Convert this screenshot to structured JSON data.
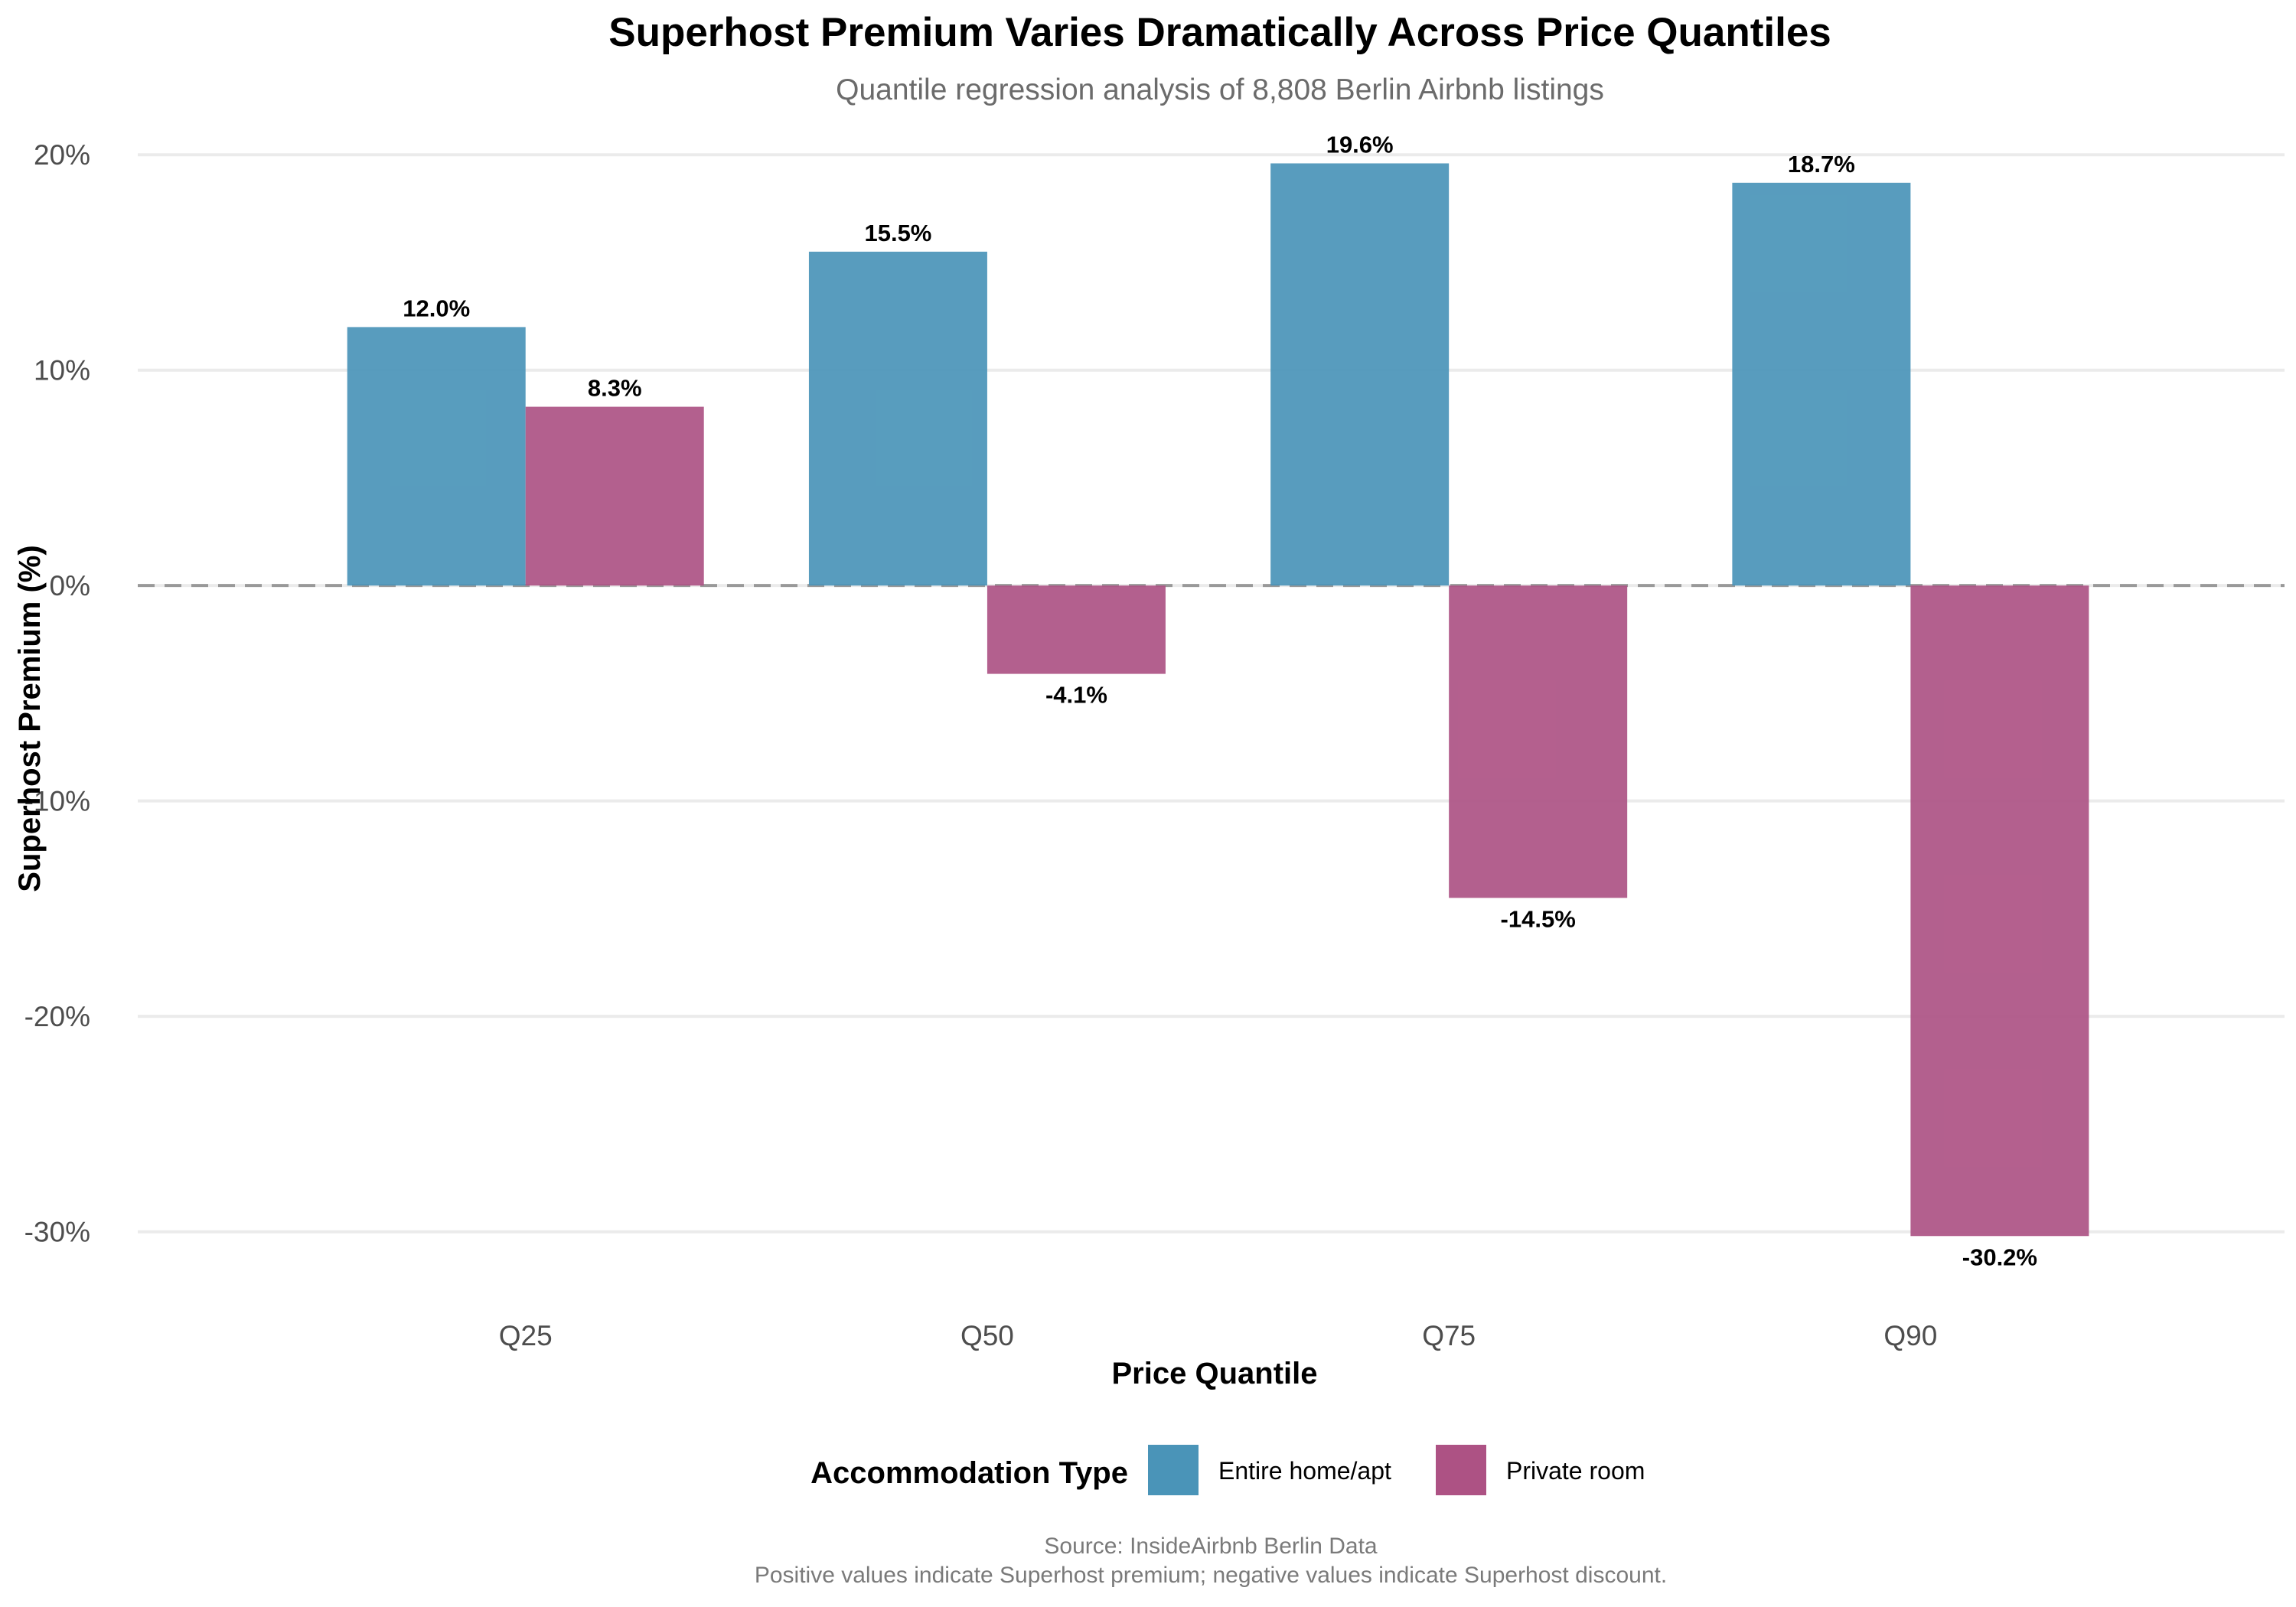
{
  "chart_data": {
    "type": "bar",
    "title": "Superhost Premium Varies Dramatically Across Price Quantiles",
    "subtitle": "Quantile regression analysis of 8,808 Berlin Airbnb listings",
    "xlabel": "Price Quantile",
    "ylabel": "Superhost Premium (%)",
    "categories": [
      "Q25",
      "Q50",
      "Q75",
      "Q90"
    ],
    "ylim": [
      -32.5,
      21.5
    ],
    "yticks": [
      20,
      10,
      0,
      -10,
      -20,
      -30
    ],
    "ytick_labels": [
      "20%",
      "10%",
      "0%",
      "-10%",
      "-20%",
      "-30%"
    ],
    "series": [
      {
        "name": "Entire home/apt",
        "color": "#4a94b8",
        "values": [
          12.0,
          15.5,
          19.6,
          18.7
        ],
        "labels": [
          "12.0%",
          "15.5%",
          "19.6%",
          "18.7%"
        ]
      },
      {
        "name": "Private room",
        "color": "#ad5284",
        "values": [
          8.3,
          -4.1,
          -14.5,
          -30.2
        ],
        "labels": [
          "8.3%",
          "-4.1%",
          "-14.5%",
          "-30.2%"
        ]
      }
    ],
    "reference_line": 0,
    "grid": "horizontal",
    "legend": {
      "title": "Accommodation Type",
      "position": "bottom"
    },
    "caption": [
      "Source: InsideAirbnb Berlin Data",
      "Positive values indicate Superhost premium; negative values indicate Superhost discount."
    ]
  }
}
